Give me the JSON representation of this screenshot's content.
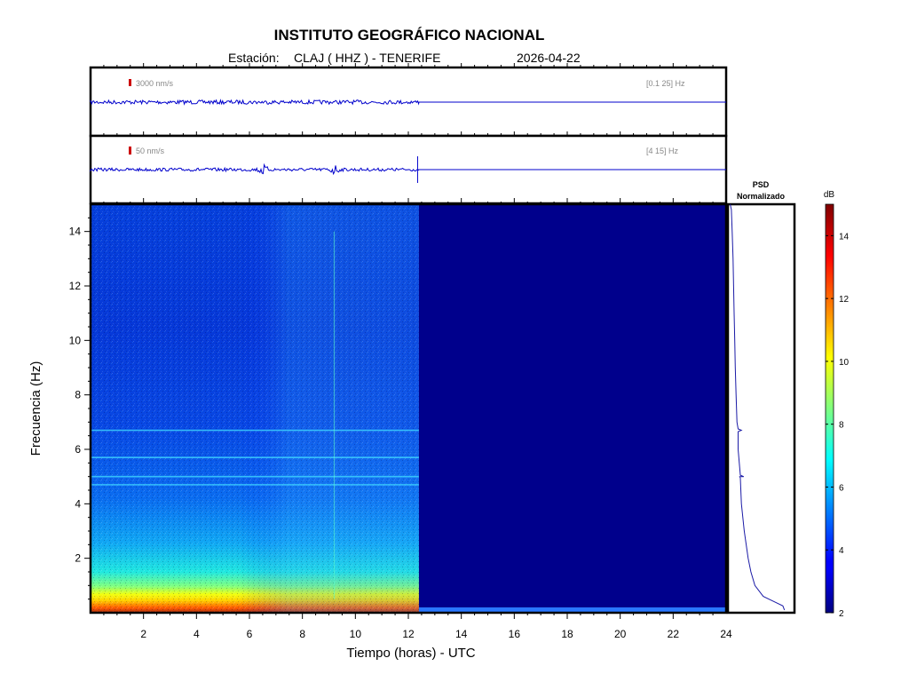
{
  "header": {
    "institution": "INSTITUTO GEOGRÁFICO NACIONAL",
    "station_label": "Estación:",
    "station": "CLAJ ( HHZ ) - TENERIFE",
    "date": "2026-04-22"
  },
  "chart_data": [
    {
      "type": "line",
      "panel": "seismogram-broadband",
      "scale_label": "3000 nm/s",
      "filter_label": "[0.1 25] Hz",
      "x_range_hours": [
        0,
        24
      ],
      "data_end_hour": 12.4,
      "scale_color": "#cc0000",
      "trace_color": "#0000cc"
    },
    {
      "type": "line",
      "panel": "seismogram-filtered",
      "scale_label": "50 nm/s",
      "filter_label": "[4 15] Hz",
      "x_range_hours": [
        0,
        24
      ],
      "data_end_hour": 12.4,
      "event_hours": [
        9.2,
        12.35
      ],
      "scale_color": "#cc0000",
      "trace_color": "#0000cc"
    },
    {
      "type": "heatmap",
      "panel": "spectrogram",
      "xlabel": "Tiempo (horas) - UTC",
      "ylabel": "Frecuencia  (Hz)",
      "xlim": [
        0,
        24
      ],
      "ylim": [
        0,
        15
      ],
      "xticks": [
        2,
        4,
        6,
        8,
        10,
        12,
        14,
        16,
        18,
        20,
        22,
        24
      ],
      "yticks": [
        2,
        4,
        6,
        8,
        10,
        12,
        14
      ],
      "data_end_hour": 12.4,
      "colormap": "jet",
      "spectral_lines_hz": [
        4.7,
        5.0,
        5.7,
        6.7
      ],
      "transient_hour": 9.2
    },
    {
      "type": "line",
      "panel": "psd",
      "title_line1": "PSD",
      "title_line2": "Normalizado",
      "ylim": [
        0,
        15
      ],
      "profile": [
        {
          "f": 0.1,
          "v": 0.98
        },
        {
          "f": 0.25,
          "v": 0.95
        },
        {
          "f": 0.4,
          "v": 0.8
        },
        {
          "f": 0.6,
          "v": 0.6
        },
        {
          "f": 1.0,
          "v": 0.45
        },
        {
          "f": 1.5,
          "v": 0.38
        },
        {
          "f": 2.0,
          "v": 0.33
        },
        {
          "f": 3.0,
          "v": 0.26
        },
        {
          "f": 4.0,
          "v": 0.21
        },
        {
          "f": 5.0,
          "v": 0.18
        },
        {
          "f": 6.0,
          "v": 0.15
        },
        {
          "f": 7.0,
          "v": 0.13
        },
        {
          "f": 8.0,
          "v": 0.115
        },
        {
          "f": 9.0,
          "v": 0.1
        },
        {
          "f": 10.0,
          "v": 0.09
        },
        {
          "f": 11.0,
          "v": 0.08
        },
        {
          "f": 12.0,
          "v": 0.07
        },
        {
          "f": 13.0,
          "v": 0.06
        },
        {
          "f": 14.0,
          "v": 0.045
        },
        {
          "f": 14.8,
          "v": 0.03
        },
        {
          "f": 15.0,
          "v": 0.01
        }
      ],
      "peaks": [
        {
          "f": 5.0,
          "v": 0.25
        },
        {
          "f": 6.7,
          "v": 0.21
        }
      ],
      "line_color": "#1a1aa6"
    },
    {
      "type": "colorbar",
      "panel": "colorbar",
      "label": "dB",
      "range": [
        2,
        15
      ],
      "ticks": [
        2,
        4,
        6,
        8,
        10,
        12,
        14
      ]
    }
  ]
}
